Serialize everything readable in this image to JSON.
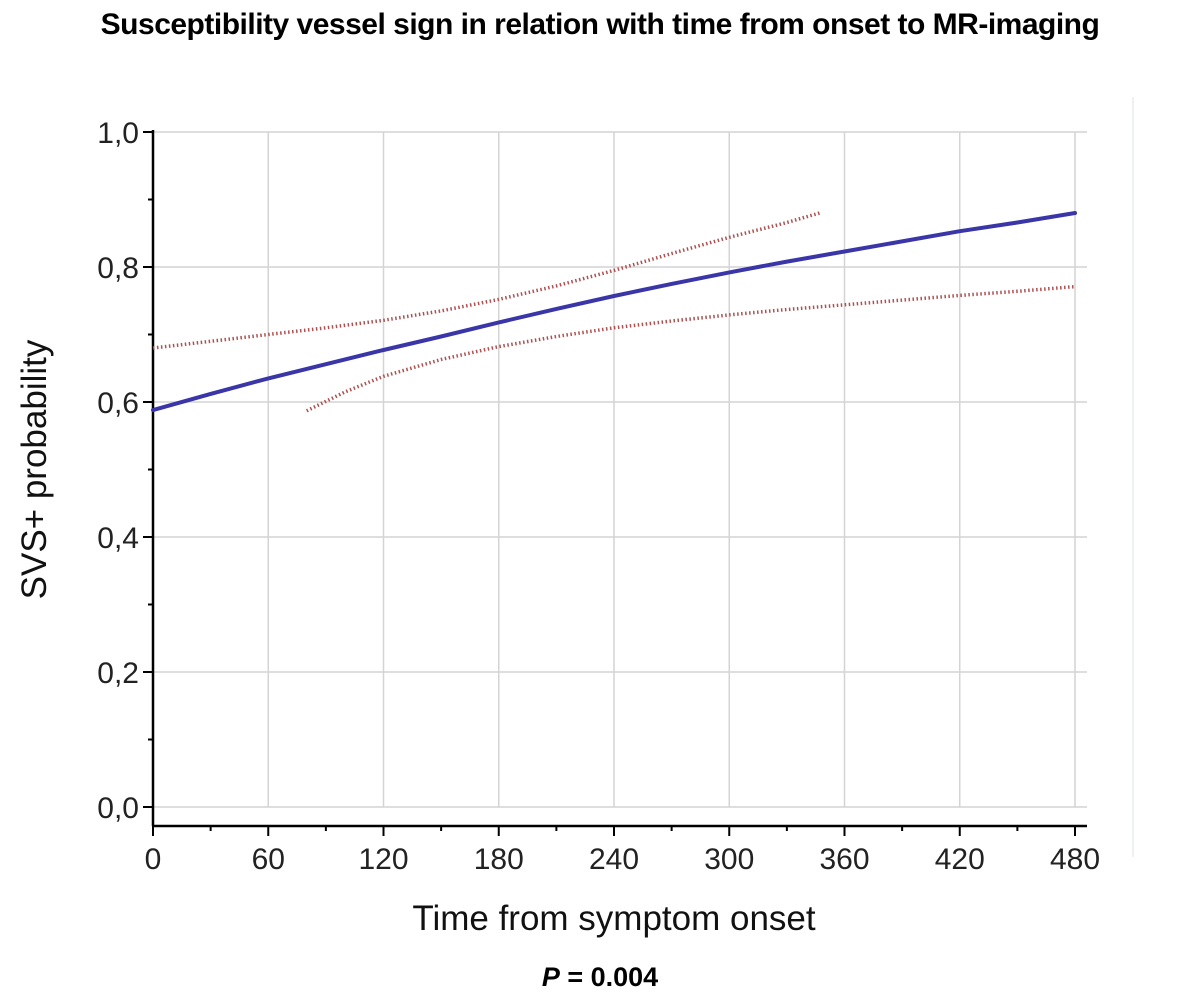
{
  "chart_data": {
    "type": "line",
    "title": "Susceptibility vessel sign in relation with time from onset to MR-imaging",
    "xlabel": "Time from symptom onset",
    "ylabel": "SVS+ probability",
    "xlim": [
      0,
      480
    ],
    "ylim": [
      0,
      1.0
    ],
    "x_ticks": [
      0,
      60,
      120,
      180,
      240,
      300,
      360,
      420,
      480
    ],
    "x_tick_labels": [
      "0",
      "60",
      "120",
      "180",
      "240",
      "300",
      "360",
      "420",
      "480"
    ],
    "y_ticks": [
      0,
      0.2,
      0.4,
      0.6,
      0.8,
      1.0
    ],
    "y_tick_labels": [
      "0,0",
      "0,2",
      "0,4",
      "0,6",
      "0,8",
      "1,0"
    ],
    "grid": true,
    "series": [
      {
        "role": "fit",
        "color": "#3a36a8",
        "style": "solid",
        "x": [
          0,
          30,
          60,
          90,
          120,
          150,
          180,
          210,
          240,
          270,
          300,
          330,
          360,
          390,
          420,
          450,
          480
        ],
        "y": [
          0.588,
          0.612,
          0.635,
          0.656,
          0.677,
          0.697,
          0.718,
          0.738,
          0.757,
          0.775,
          0.792,
          0.808,
          0.823,
          0.838,
          0.853,
          0.866,
          0.88
        ]
      },
      {
        "role": "upper-ci",
        "color": "#b05050",
        "style": "dotted",
        "x": [
          0,
          30,
          60,
          90,
          120,
          150,
          180,
          210,
          240,
          270,
          300,
          330,
          347
        ],
        "y": [
          0.68,
          0.69,
          0.7,
          0.71,
          0.721,
          0.735,
          0.752,
          0.772,
          0.795,
          0.82,
          0.844,
          0.866,
          0.88
        ]
      },
      {
        "role": "lower-ci",
        "color": "#b05050",
        "style": "dotted",
        "x": [
          80,
          100,
          120,
          150,
          180,
          210,
          240,
          270,
          300,
          330,
          360,
          390,
          420,
          450,
          480
        ],
        "y": [
          0.587,
          0.615,
          0.638,
          0.663,
          0.682,
          0.697,
          0.71,
          0.72,
          0.729,
          0.737,
          0.744,
          0.751,
          0.758,
          0.764,
          0.771
        ]
      }
    ]
  },
  "footer": {
    "p_letter": "P",
    "p_rest": " = 0.004"
  }
}
